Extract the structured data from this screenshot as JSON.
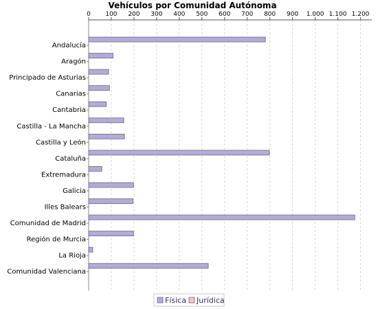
{
  "chart_data": {
    "type": "bar",
    "orientation": "horizontal",
    "title": "Vehículos por Comunidad Autónoma",
    "xlabel": "",
    "ylabel": "",
    "xlim": [
      0,
      1250
    ],
    "x_ticks": [
      0,
      100,
      200,
      300,
      400,
      500,
      600,
      700,
      800,
      900,
      1000,
      1100,
      1200
    ],
    "x_tick_labels": [
      "0",
      "100",
      "200",
      "300",
      "400",
      "500",
      "600",
      "700",
      "800",
      "900",
      "1.000",
      "1.100",
      "1.200"
    ],
    "x_axis_position": "top",
    "grid": true,
    "legend_position": "bottom",
    "categories": [
      "Andalucía",
      "Aragón",
      "Principado de Asturias",
      "Canarias",
      "Cantabria",
      "Castilla - La Mancha",
      "Castilla y León",
      "Cataluña",
      "Extremadura",
      "Galicia",
      "Illes Balears",
      "Comunidad de Madrid",
      "Región de Murcia",
      "La Rioja",
      "Comunidad Valenciana"
    ],
    "series": [
      {
        "name": "Física",
        "color": "#b3acd6",
        "values": [
          780,
          108,
          88,
          92,
          78,
          155,
          158,
          798,
          58,
          198,
          196,
          1175,
          198,
          18,
          528
        ]
      },
      {
        "name": "Jurídica",
        "color": "#f5c4c4",
        "values": [
          0,
          0,
          0,
          0,
          0,
          0,
          0,
          0,
          0,
          0,
          0,
          0,
          0,
          0,
          0
        ]
      }
    ]
  }
}
